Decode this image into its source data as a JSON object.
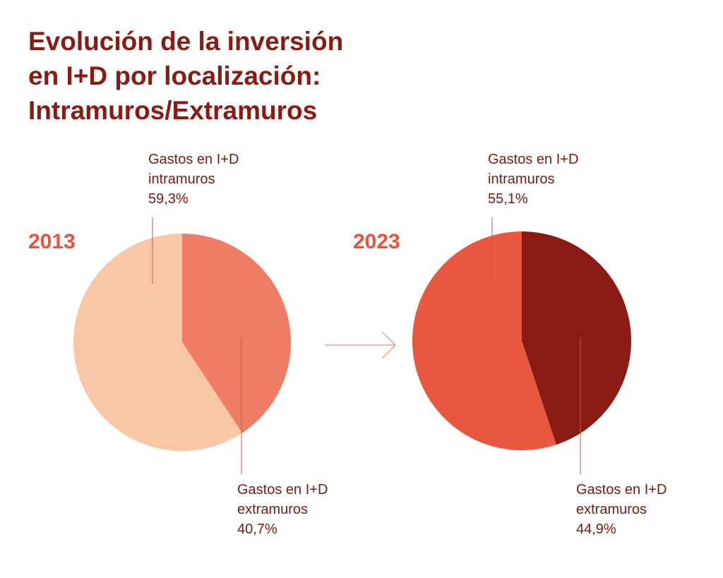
{
  "title_lines": [
    "Evolución de la inversión",
    "en I+D por localización:",
    "Intramuros/Extramuros"
  ],
  "chart_data": [
    {
      "type": "pie",
      "label": "2013",
      "slices": [
        {
          "name": "Gastos en I+D intramuros",
          "value": 59.3,
          "label": "59,3%",
          "color": "#f9c6a6"
        },
        {
          "name": "Gastos en I+D extramuros",
          "value": 40.7,
          "label": "40,7%",
          "color": "#ef7d65"
        }
      ]
    },
    {
      "type": "pie",
      "label": "2023",
      "slices": [
        {
          "name": "Gastos en I+D intramuros",
          "value": 55.1,
          "label": "55,1%",
          "color": "#e8573e"
        },
        {
          "name": "Gastos en I+D extramuros",
          "value": 44.9,
          "label": "44,9%",
          "color": "#8a1a14"
        }
      ]
    }
  ],
  "labels": {
    "p1_in_line1": "Gastos en I+D",
    "p1_in_line2": "intramuros",
    "p1_ex_line1": "Gastos en I+D",
    "p1_ex_line2": "extramuros",
    "p2_in_line1": "Gastos en I+D",
    "p2_in_line2": "intramuros",
    "p2_ex_line1": "Gastos en I+D",
    "p2_ex_line2": "extramuros"
  },
  "colors": {
    "title": "#8b1a12",
    "year": "#e8533a",
    "label": "#7a1a12",
    "leader": "#c65a48",
    "arrow": "#ef8a78"
  },
  "icons": {
    "between_pies": "arrow-right-icon"
  }
}
